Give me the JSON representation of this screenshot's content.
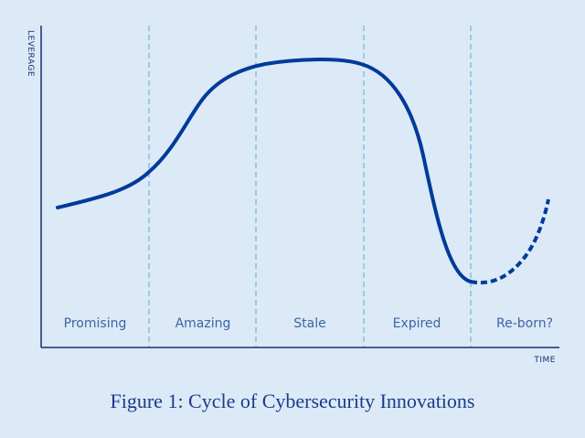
{
  "y_axis_label": "LEVERAGE",
  "x_axis_label": "TIME",
  "phases": [
    "Promising",
    "Amazing",
    "Stale",
    "Expired",
    "Re-born?"
  ],
  "caption": "Figure 1: Cycle of Cybersecurity Innovations"
}
